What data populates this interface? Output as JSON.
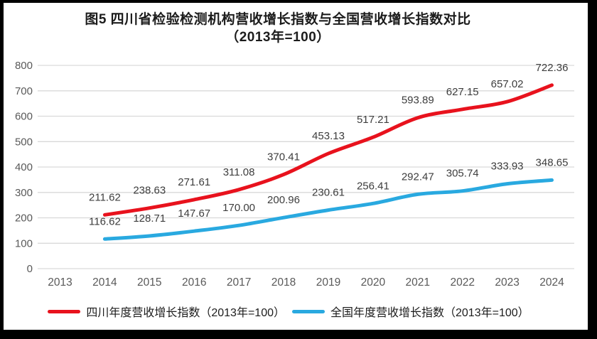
{
  "title": {
    "line1": "图5  四川省检验检测机构营收增长指数与全国营收增长指数对比",
    "line2": "（2013年=100）"
  },
  "chart_data": {
    "type": "line",
    "title": "图5 四川省检验检测机构营收增长指数与全国营收增长指数对比（2013年=100）",
    "categories": [
      "2013",
      "2014",
      "2015",
      "2016",
      "2017",
      "2018",
      "2019",
      "2020",
      "2021",
      "2022",
      "2023",
      "2024"
    ],
    "series": [
      {
        "name": "四川年度营收增长指数（2013年=100）",
        "color": "#e8121d",
        "values": [
          null,
          211.62,
          238.63,
          271.61,
          311.08,
          370.41,
          453.13,
          517.21,
          593.89,
          627.15,
          657.02,
          722.36
        ]
      },
      {
        "name": "全国年度营收增长指数（2013年=100）",
        "color": "#29a9e0",
        "values": [
          null,
          116.62,
          128.71,
          147.67,
          170.0,
          200.96,
          230.61,
          256.41,
          292.47,
          305.74,
          333.93,
          348.65
        ]
      }
    ],
    "xlabel": "",
    "ylabel": "",
    "ylim": [
      0,
      800
    ],
    "yticks": [
      0,
      100,
      200,
      300,
      400,
      500,
      600,
      700,
      800
    ],
    "grid": true,
    "legend_position": "bottom",
    "data_labels": true
  },
  "colors": {
    "sichuan_line": "#e8121d",
    "national_line": "#29a9e0",
    "gridline": "#d9d9d9",
    "tick_label": "#595959",
    "data_label": "#3d3d3d",
    "frame": "#000000"
  }
}
